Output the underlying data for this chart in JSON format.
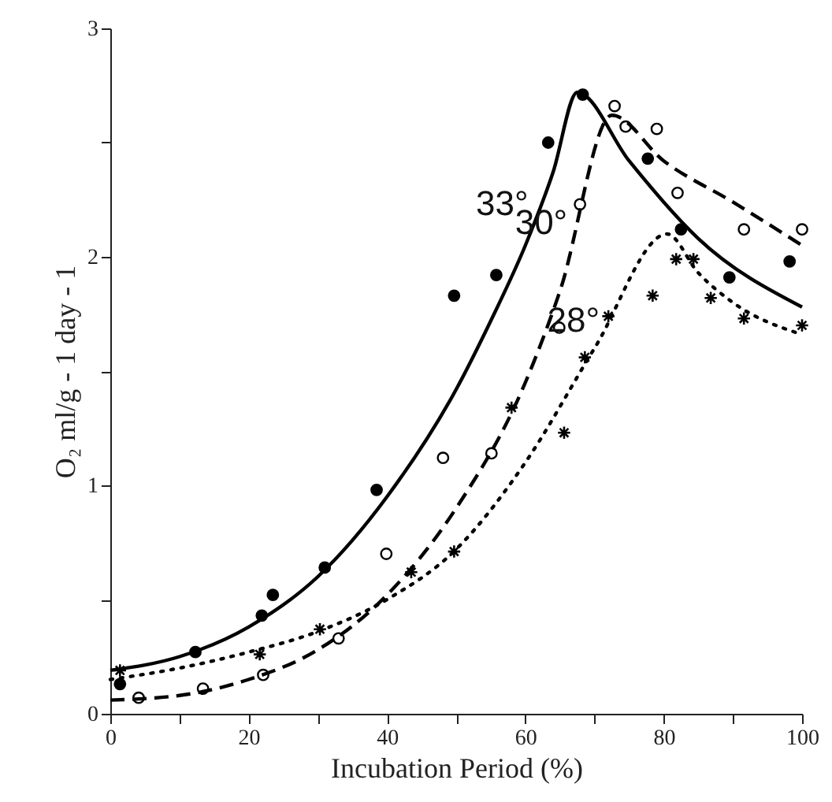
{
  "chart_data": {
    "type": "scatter",
    "xlabel": "Incubation Period (%)",
    "ylabel": "O₂ ml/g - 1 day - 1",
    "xlim": [
      0,
      100
    ],
    "ylim": [
      0,
      3
    ],
    "xticks": [
      0,
      {
        "value": 10,
        "label": null
      },
      20,
      {
        "value": 30,
        "label": null
      },
      40,
      {
        "value": 50,
        "label": null
      },
      60,
      {
        "value": 70,
        "label": null
      },
      80,
      {
        "value": 90,
        "label": null
      },
      100
    ],
    "yticks": [
      0,
      {
        "value": 0.5,
        "label": null
      },
      1,
      {
        "value": 1.5,
        "label": null
      },
      2,
      {
        "value": 2.5,
        "label": null
      },
      3
    ],
    "grid": false,
    "series": [
      {
        "type": "scatter",
        "marker": "circle",
        "color": "#000000",
        "x": [
          1.4,
          12.3,
          21.9,
          23.5,
          31,
          38.5,
          49.7,
          55.8,
          63.3,
          68.3,
          77.7,
          82.5,
          89.5,
          98.2
        ],
        "values": [
          0.13,
          0.27,
          0.43,
          0.52,
          0.64,
          0.98,
          1.83,
          1.92,
          2.5,
          2.71,
          2.43,
          2.12,
          1.91,
          1.98
        ]
      },
      {
        "type": "scatter",
        "marker": "circle",
        "color": "#ffffff",
        "x": [
          4.1,
          13.4,
          22.1,
          33,
          39.9,
          48.1,
          55.1,
          64.9,
          67.9,
          72.9,
          74.5,
          79,
          82,
          91.6,
          100
        ],
        "values": [
          0.07,
          0.11,
          0.17,
          0.33,
          0.7,
          1.12,
          1.14,
          1.69,
          2.23,
          2.66,
          2.57,
          2.56,
          2.28,
          2.12,
          2.12
        ]
      },
      {
        "type": "scatter",
        "marker": "cross",
        "color": "#000000",
        "x": [
          1.4,
          21.6,
          30.3,
          43.5,
          49.7,
          58,
          65.6,
          68.6,
          72,
          78.4,
          81.8,
          84.3,
          86.8,
          91.6,
          100
        ],
        "values": [
          0.19,
          0.26,
          0.37,
          0.62,
          0.71,
          1.34,
          1.23,
          1.56,
          1.74,
          1.83,
          1.99,
          1.99,
          1.82,
          1.73,
          1.7
        ]
      },
      {
        "type": "line",
        "name": "33°",
        "line_style": "solid",
        "color": "#000000",
        "x": [
          0,
          10,
          20,
          30,
          40,
          50,
          55,
          60,
          64,
          67.5,
          75,
          85,
          100
        ],
        "values": [
          0.19,
          0.25,
          0.38,
          0.6,
          0.95,
          1.42,
          1.72,
          2.05,
          2.37,
          2.72,
          2.42,
          2.08,
          1.78
        ]
      },
      {
        "type": "line",
        "name": "30°",
        "line_style": "dashed",
        "color": "#000000",
        "x": [
          0,
          10,
          20,
          30,
          40,
          50,
          60,
          65,
          72.5,
          80,
          90,
          100
        ],
        "values": [
          0.06,
          0.08,
          0.15,
          0.28,
          0.52,
          0.9,
          1.45,
          1.85,
          2.62,
          2.42,
          2.24,
          2.05
        ]
      },
      {
        "type": "line",
        "name": "28°",
        "line_style": "dotted",
        "color": "#000000",
        "x": [
          0,
          10,
          20,
          30,
          40,
          50,
          60,
          70,
          80.5,
          85,
          90,
          100
        ],
        "values": [
          0.15,
          0.2,
          0.27,
          0.36,
          0.5,
          0.72,
          1.1,
          1.6,
          2.1,
          1.93,
          1.8,
          1.66
        ]
      }
    ]
  }
}
